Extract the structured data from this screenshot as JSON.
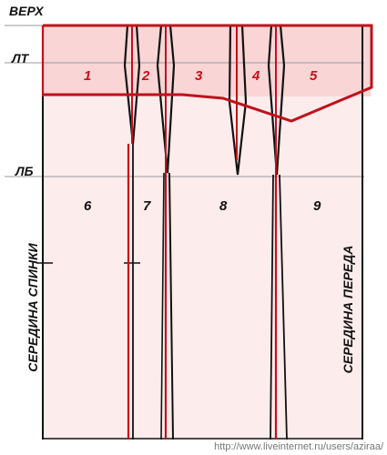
{
  "levels": {
    "top": "ВЕРХ",
    "waist": "ЛТ",
    "hip": "ЛБ"
  },
  "panels_upper": [
    "1",
    "2",
    "3",
    "4",
    "5"
  ],
  "panels_lower": [
    "6",
    "7",
    "8",
    "9"
  ],
  "sides": {
    "back_center": "СЕРЕДИНА СПИНКИ",
    "front_center": "СЕРЕДИНА ПЕРЕДА"
  },
  "watermark": "http://www.liveinternet.ru/users/aziraa/",
  "colors": {
    "pattern_red": "#c0121b",
    "outline_black": "#111111",
    "fill_light": "#fdecec",
    "fill_top": "#f9d5d5",
    "grid_line": "#9a9a9a"
  }
}
